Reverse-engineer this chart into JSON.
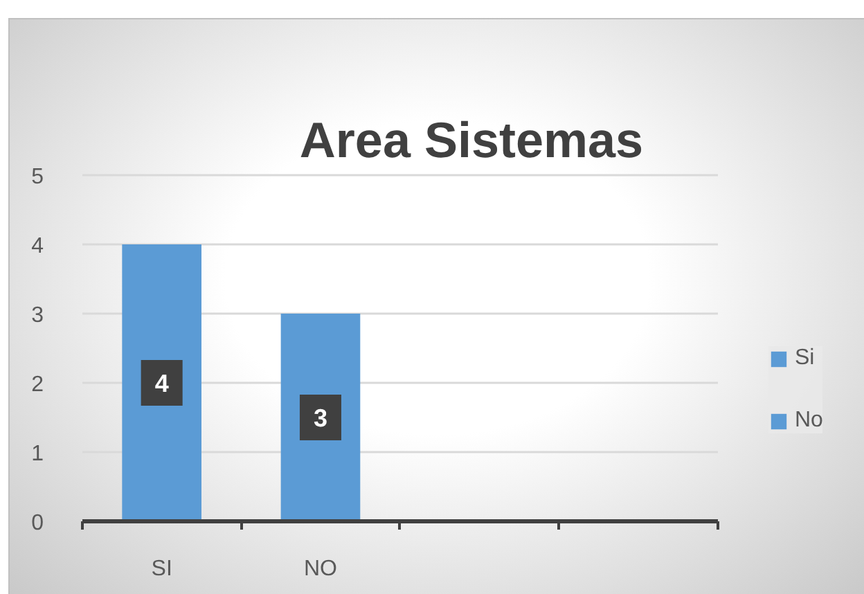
{
  "chart_data": {
    "type": "bar",
    "title": "Area Sistemas",
    "categories": [
      "SI",
      "NO",
      null,
      null
    ],
    "series": [
      {
        "name": "Si",
        "color": "#5b9bd5",
        "values": [
          4,
          null,
          null,
          null
        ]
      },
      {
        "name": "No",
        "color": "#5b9bd5",
        "values": [
          null,
          3,
          null,
          null
        ]
      }
    ],
    "stacked": true,
    "ylim": [
      0,
      5
    ],
    "yticks": [
      0,
      1,
      2,
      3,
      4,
      5
    ],
    "grid": "y",
    "legend": "right",
    "data_labels": true
  }
}
